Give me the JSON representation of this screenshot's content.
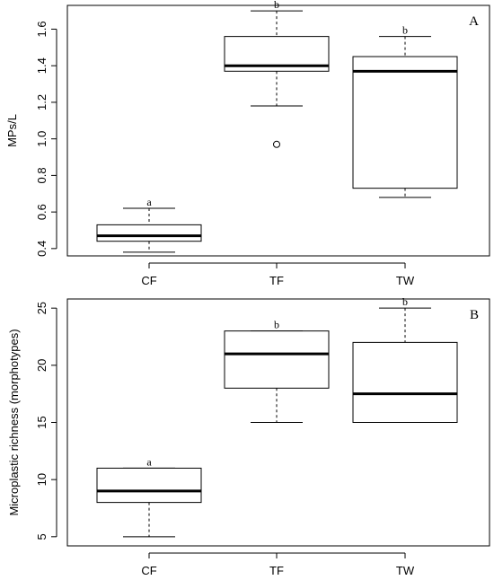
{
  "chart_data": [
    {
      "type": "boxplot",
      "panel_label": "A",
      "ylabel": "MPs/L",
      "categories": [
        "CF",
        "TF",
        "TW"
      ],
      "yticks": [
        "0.4",
        "0.6",
        "0.8",
        "1.0",
        "1.2",
        "1.4",
        "1.6"
      ],
      "ylim": [
        0.36,
        1.73
      ],
      "boxes": [
        {
          "category": "CF",
          "min": 0.38,
          "q1": 0.44,
          "median": 0.47,
          "q3": 0.53,
          "max": 0.62,
          "outliers": [],
          "letter": "a"
        },
        {
          "category": "TF",
          "min": 1.18,
          "q1": 1.37,
          "median": 1.4,
          "q3": 1.56,
          "max": 1.7,
          "outliers": [
            0.97
          ],
          "letter": "b"
        },
        {
          "category": "TW",
          "min": 0.68,
          "q1": 0.73,
          "median": 1.37,
          "q3": 1.45,
          "max": 1.56,
          "outliers": [],
          "letter": "b"
        }
      ]
    },
    {
      "type": "boxplot",
      "panel_label": "B",
      "ylabel": "Microplastic richness (morphotypes)",
      "categories": [
        "CF",
        "TF",
        "TW"
      ],
      "yticks": [
        "5",
        "10",
        "15",
        "20",
        "25"
      ],
      "ylim": [
        4.2,
        25.8
      ],
      "boxes": [
        {
          "category": "CF",
          "min": 5,
          "q1": 8,
          "median": 9,
          "q3": 11,
          "max": 11,
          "outliers": [],
          "letter": "a"
        },
        {
          "category": "TF",
          "min": 15,
          "q1": 18,
          "median": 21,
          "q3": 23,
          "max": 23,
          "outliers": [],
          "letter": "b"
        },
        {
          "category": "TW",
          "min": 15,
          "q1": 15,
          "median": 17.5,
          "q3": 22,
          "max": 25,
          "outliers": [],
          "letter": "b"
        }
      ]
    }
  ]
}
